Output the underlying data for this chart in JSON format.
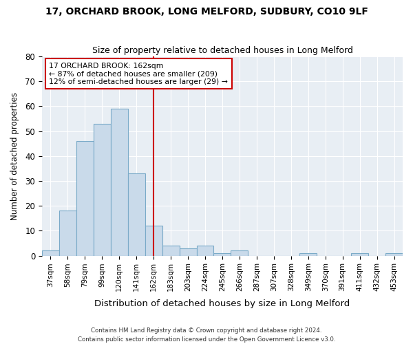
{
  "title1": "17, ORCHARD BROOK, LONG MELFORD, SUDBURY, CO10 9LF",
  "title2": "Size of property relative to detached houses in Long Melford",
  "xlabel": "Distribution of detached houses by size in Long Melford",
  "ylabel": "Number of detached properties",
  "categories": [
    "37sqm",
    "58sqm",
    "79sqm",
    "99sqm",
    "120sqm",
    "141sqm",
    "162sqm",
    "183sqm",
    "203sqm",
    "224sqm",
    "245sqm",
    "266sqm",
    "287sqm",
    "307sqm",
    "328sqm",
    "349sqm",
    "370sqm",
    "391sqm",
    "411sqm",
    "432sqm",
    "453sqm"
  ],
  "values": [
    2,
    18,
    46,
    53,
    59,
    33,
    12,
    4,
    3,
    4,
    1,
    2,
    0,
    0,
    0,
    1,
    0,
    0,
    1,
    0,
    1
  ],
  "bar_color": "#c9daea",
  "bar_edge_color": "#7aaac8",
  "vline_x_idx": 6,
  "vline_color": "#cc0000",
  "annotation_line1": "17 ORCHARD BROOK: 162sqm",
  "annotation_line2": "← 87% of detached houses are smaller (209)",
  "annotation_line3": "12% of semi-detached houses are larger (29) →",
  "annotation_box_color": "#ffffff",
  "annotation_box_edge": "#cc0000",
  "footer": "Contains HM Land Registry data © Crown copyright and database right 2024.\nContains public sector information licensed under the Open Government Licence v3.0.",
  "ylim": [
    0,
    80
  ],
  "fig_bg": "#ffffff",
  "axes_bg": "#e8eef4",
  "grid_color": "#ffffff",
  "yticks": [
    0,
    10,
    20,
    30,
    40,
    50,
    60,
    70,
    80
  ]
}
